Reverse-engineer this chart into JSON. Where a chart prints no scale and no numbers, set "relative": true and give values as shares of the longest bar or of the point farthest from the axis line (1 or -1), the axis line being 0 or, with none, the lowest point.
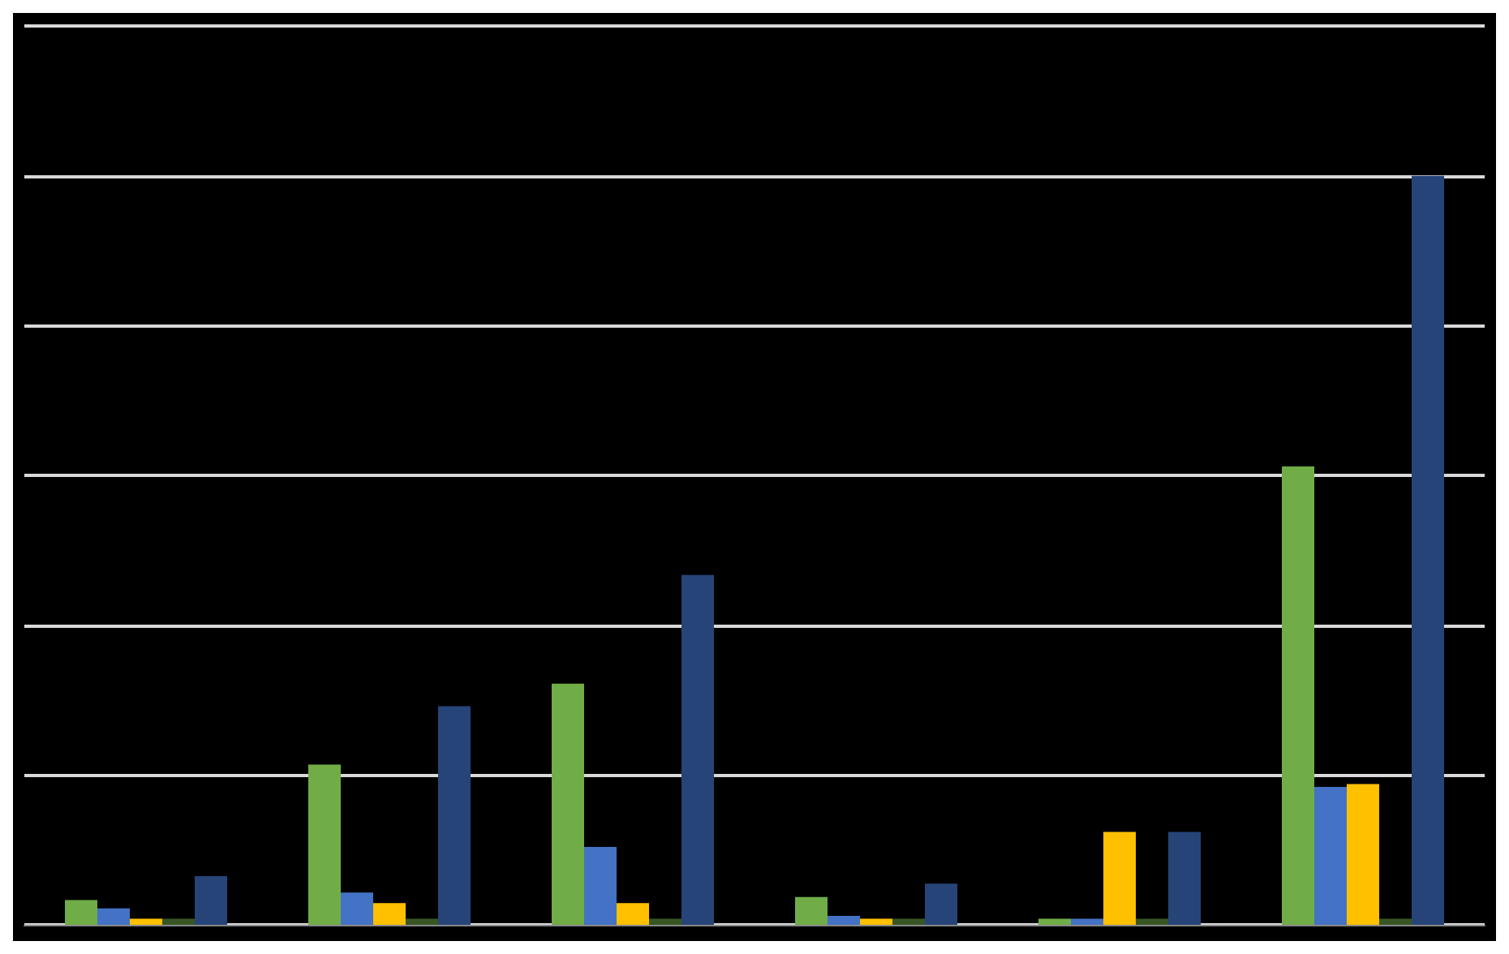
{
  "chart_data": {
    "type": "bar",
    "relative": true,
    "grid": "y",
    "categories": [
      null,
      null,
      null,
      null,
      null,
      null
    ],
    "series": [
      {
        "color": "#70ad47",
        "values": [
          0.033,
          0.214,
          0.322,
          0.037,
          0.008,
          0.612
        ]
      },
      {
        "color": "#4472c4",
        "values": [
          0.022,
          0.043,
          0.104,
          0.012,
          0.008,
          0.184
        ]
      },
      {
        "color": "#ffc000",
        "values": [
          0.008,
          0.029,
          0.029,
          0.008,
          0.124,
          0.188
        ]
      },
      {
        "color": "#375623",
        "values": [
          0.008,
          0.008,
          0.008,
          0.008,
          0.008,
          0.008
        ]
      },
      {
        "color": "#264478",
        "values": [
          0.065,
          0.292,
          0.467,
          0.055,
          0.124,
          1
        ]
      }
    ]
  }
}
